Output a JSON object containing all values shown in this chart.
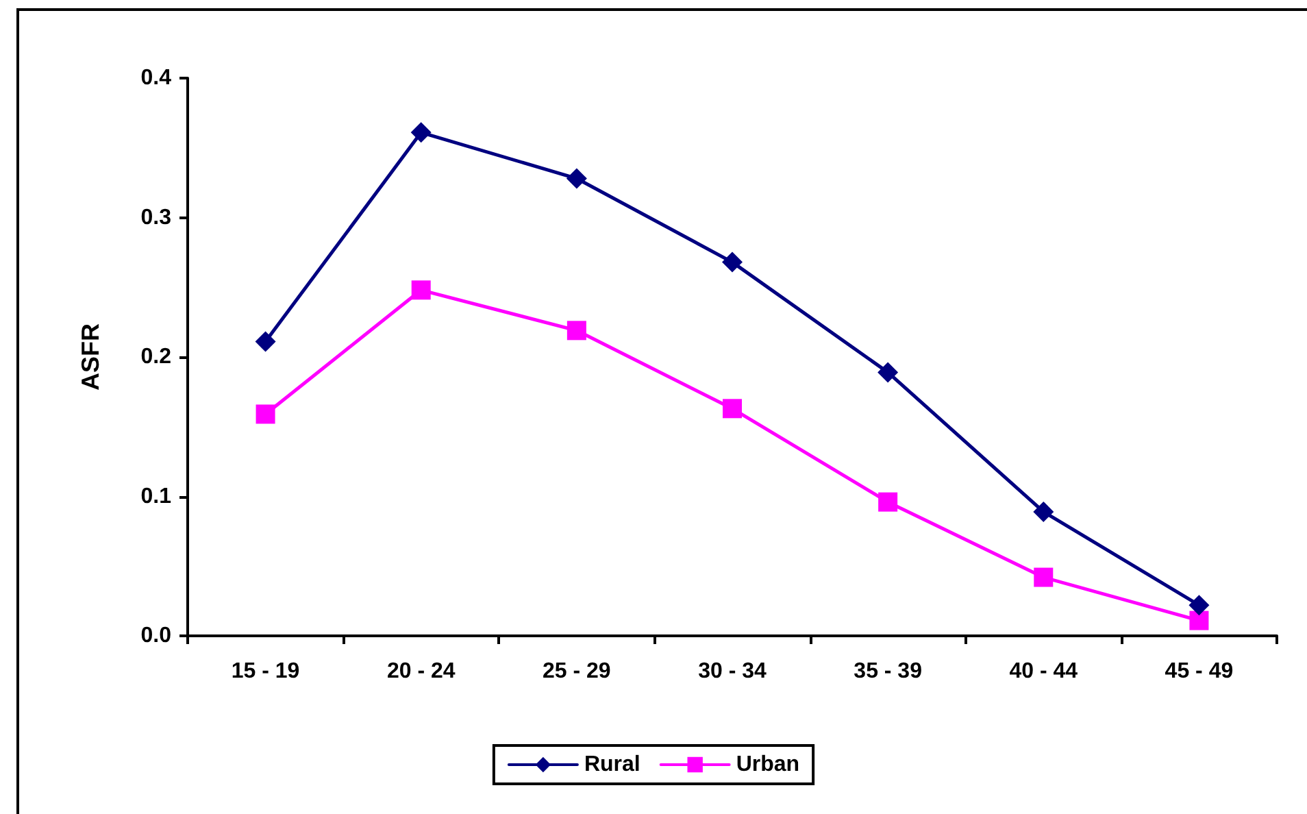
{
  "chart_data": {
    "type": "line",
    "ylabel": "ASFR",
    "categories": [
      "15 - 19",
      "20 - 24",
      "25 - 29",
      "30 - 34",
      "35 - 39",
      "40 - 44",
      "45 - 49"
    ],
    "series": [
      {
        "name": "Rural",
        "color": "#000080",
        "marker": "diamond",
        "values": [
          0.211,
          0.361,
          0.328,
          0.268,
          0.189,
          0.089,
          0.022
        ]
      },
      {
        "name": "Urban",
        "color": "#ff00ff",
        "marker": "square",
        "values": [
          0.159,
          0.248,
          0.219,
          0.163,
          0.096,
          0.042,
          0.011
        ]
      }
    ],
    "ylim": [
      0,
      0.4
    ],
    "yticks": [
      {
        "value": 0,
        "label": "0.0"
      },
      0.1,
      0.2,
      0.3,
      0.4
    ],
    "legend": "bottom",
    "line_style": "solid"
  }
}
